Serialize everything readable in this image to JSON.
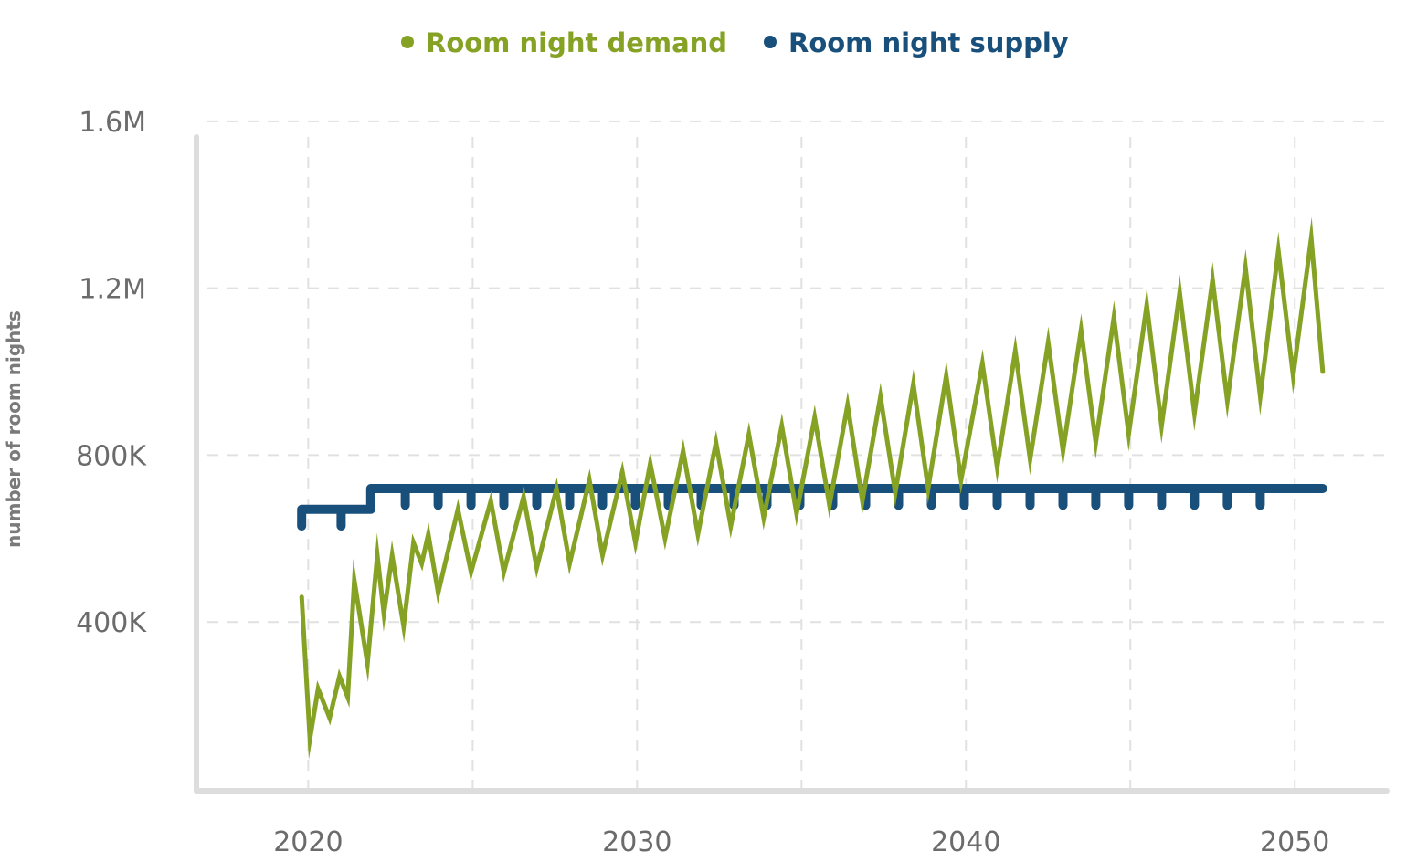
{
  "chart_data": {
    "type": "line",
    "title": "",
    "xlabel": "",
    "ylabel": "number of room nights",
    "xlim": [
      2016.6,
      2052.8
    ],
    "ylim": [
      0,
      1650000
    ],
    "x_ticks": [
      2020,
      2030,
      2040,
      2050
    ],
    "x_tick_labels": [
      "2020",
      "2030",
      "2040",
      "2050"
    ],
    "y_ticks": [
      400000,
      800000,
      1200000,
      1600000
    ],
    "y_tick_labels": [
      "400K",
      "800K",
      "1.2M",
      "1.6M"
    ],
    "grid": true,
    "legend_position": "top-center",
    "series": [
      {
        "name": "Room night demand",
        "color": "#86a224",
        "points": [
          [
            2019.8,
            460000
          ],
          [
            2020.05,
            120000
          ],
          [
            2020.3,
            240000
          ],
          [
            2020.65,
            170000
          ],
          [
            2020.95,
            270000
          ],
          [
            2021.2,
            220000
          ],
          [
            2021.4,
            500000
          ],
          [
            2021.8,
            300000
          ],
          [
            2022.1,
            560000
          ],
          [
            2022.3,
            420000
          ],
          [
            2022.55,
            560000
          ],
          [
            2022.9,
            390000
          ],
          [
            2023.2,
            590000
          ],
          [
            2023.45,
            540000
          ],
          [
            2023.65,
            610000
          ],
          [
            2023.95,
            470000
          ],
          [
            2024.55,
            670000
          ],
          [
            2024.95,
            520000
          ],
          [
            2025.55,
            690000
          ],
          [
            2025.95,
            520000
          ],
          [
            2026.55,
            700000
          ],
          [
            2026.95,
            530000
          ],
          [
            2027.55,
            720000
          ],
          [
            2027.95,
            540000
          ],
          [
            2028.55,
            740000
          ],
          [
            2028.95,
            560000
          ],
          [
            2029.55,
            760000
          ],
          [
            2029.95,
            590000
          ],
          [
            2030.4,
            780000
          ],
          [
            2030.85,
            600000
          ],
          [
            2031.4,
            810000
          ],
          [
            2031.85,
            610000
          ],
          [
            2032.4,
            830000
          ],
          [
            2032.85,
            630000
          ],
          [
            2033.4,
            850000
          ],
          [
            2033.85,
            650000
          ],
          [
            2034.4,
            870000
          ],
          [
            2034.85,
            660000
          ],
          [
            2035.4,
            890000
          ],
          [
            2035.85,
            680000
          ],
          [
            2036.4,
            920000
          ],
          [
            2036.85,
            690000
          ],
          [
            2037.4,
            940000
          ],
          [
            2037.85,
            710000
          ],
          [
            2038.4,
            970000
          ],
          [
            2038.85,
            720000
          ],
          [
            2039.4,
            990000
          ],
          [
            2039.85,
            740000
          ],
          [
            2040.5,
            1020000
          ],
          [
            2040.95,
            770000
          ],
          [
            2041.5,
            1050000
          ],
          [
            2041.95,
            790000
          ],
          [
            2042.5,
            1070000
          ],
          [
            2042.95,
            810000
          ],
          [
            2043.5,
            1100000
          ],
          [
            2043.95,
            830000
          ],
          [
            2044.5,
            1130000
          ],
          [
            2044.95,
            850000
          ],
          [
            2045.5,
            1160000
          ],
          [
            2045.95,
            870000
          ],
          [
            2046.5,
            1190000
          ],
          [
            2046.95,
            900000
          ],
          [
            2047.5,
            1220000
          ],
          [
            2047.95,
            930000
          ],
          [
            2048.5,
            1250000
          ],
          [
            2048.95,
            940000
          ],
          [
            2049.5,
            1290000
          ],
          [
            2049.95,
            990000
          ],
          [
            2050.5,
            1320000
          ],
          [
            2050.85,
            1000000
          ]
        ]
      },
      {
        "name": "Room night supply",
        "color": "#194f7b",
        "points": [
          [
            2019.8,
            630000
          ],
          [
            2019.8,
            670000
          ],
          [
            2021.0,
            670000
          ],
          [
            2021.0,
            630000
          ],
          [
            2021.0,
            670000
          ],
          [
            2021.9,
            670000
          ],
          [
            2021.9,
            720000
          ],
          [
            2050.85,
            720000
          ]
        ],
        "dips": {
          "start_year": 2023,
          "end_year": 2049,
          "base_value": 720000,
          "dip_value": 680000
        }
      }
    ]
  }
}
